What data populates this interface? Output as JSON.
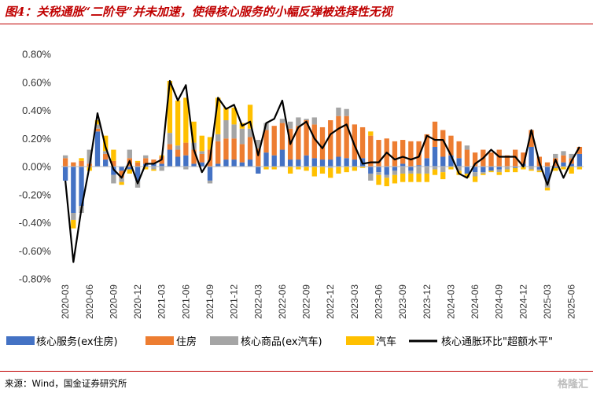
{
  "figure": {
    "title": "图4：关税通胀“二阶导”并未加速，使得核心服务的小幅反弹被选择性无视",
    "source": "来源：Wind，国金证券研究所",
    "watermark": "格隆汇"
  },
  "chart_data": {
    "type": "bar",
    "stacked": true,
    "title": "",
    "xlabel": "",
    "ylabel": "",
    "ylim": [
      -0.8,
      0.8
    ],
    "yticks": [
      "-0.80%",
      "-0.60%",
      "-0.40%",
      "-0.20%",
      "0.00%",
      "0.20%",
      "0.40%",
      "0.60%",
      "0.80%"
    ],
    "ytick_values": [
      -0.8,
      -0.6,
      -0.4,
      -0.2,
      0,
      0.2,
      0.4,
      0.6,
      0.8
    ],
    "xtick_labels": [
      "2020-03",
      "2020-06",
      "2020-09",
      "2020-12",
      "2021-03",
      "2021-06",
      "2021-09",
      "2021-12",
      "2022-03",
      "2022-06",
      "2022-09",
      "2022-12",
      "2023-03",
      "2023-06",
      "2023-09",
      "2023-12",
      "2024-03",
      "2024-06",
      "2024-09",
      "2024-12",
      "2025-03",
      "2025-06"
    ],
    "grid": false,
    "legend_position": "bottom",
    "categories": [
      "2020-03",
      "2020-04",
      "2020-05",
      "2020-06",
      "2020-07",
      "2020-08",
      "2020-09",
      "2020-10",
      "2020-11",
      "2020-12",
      "2021-01",
      "2021-02",
      "2021-03",
      "2021-04",
      "2021-05",
      "2021-06",
      "2021-07",
      "2021-08",
      "2021-09",
      "2021-10",
      "2021-11",
      "2021-12",
      "2022-01",
      "2022-02",
      "2022-03",
      "2022-04",
      "2022-05",
      "2022-06",
      "2022-07",
      "2022-08",
      "2022-09",
      "2022-10",
      "2022-11",
      "2022-12",
      "2023-01",
      "2023-02",
      "2023-03",
      "2023-04",
      "2023-05",
      "2023-06",
      "2023-07",
      "2023-08",
      "2023-09",
      "2023-10",
      "2023-11",
      "2023-12",
      "2024-01",
      "2024-02",
      "2024-03",
      "2024-04",
      "2024-05",
      "2024-06",
      "2024-07",
      "2024-08",
      "2024-09",
      "2024-10",
      "2024-11",
      "2024-12",
      "2025-01",
      "2025-02",
      "2025-03",
      "2025-04",
      "2025-05",
      "2025-06",
      "2025-07"
    ],
    "series": [
      {
        "name": "核心服务(ex住房)",
        "color": "#4472c4",
        "values": [
          -0.1,
          -0.33,
          -0.28,
          0.0,
          0.25,
          0.05,
          -0.06,
          -0.03,
          -0.02,
          -0.1,
          0.02,
          0.02,
          0.02,
          0.12,
          0.07,
          0.08,
          0.02,
          0.03,
          -0.1,
          0.02,
          0.05,
          0.05,
          0.03,
          0.05,
          -0.05,
          0.1,
          0.08,
          0.12,
          0.05,
          0.05,
          0.08,
          0.06,
          0.05,
          0.05,
          0.07,
          0.06,
          0.05,
          0.06,
          -0.05,
          -0.04,
          -0.06,
          -0.03,
          0.02,
          -0.03,
          0.01,
          0.06,
          0.14,
          0.07,
          0.08,
          0.06,
          -0.05,
          -0.04,
          -0.04,
          -0.03,
          -0.02,
          0.0,
          -0.01,
          0.02,
          0.14,
          -0.02,
          -0.1,
          -0.01,
          0.03,
          0.02,
          0.09
        ]
      },
      {
        "name": "住房",
        "color": "#ed7d31",
        "values": [
          0.06,
          0.03,
          0.04,
          0.02,
          0.02,
          0.04,
          0.04,
          -0.05,
          0.06,
          0.03,
          0.04,
          0.03,
          0.05,
          0.04,
          0.05,
          0.09,
          0.1,
          0.06,
          0.12,
          0.16,
          0.15,
          0.15,
          0.13,
          0.16,
          0.13,
          0.16,
          0.21,
          0.19,
          0.22,
          0.24,
          0.25,
          0.24,
          0.23,
          0.28,
          0.29,
          0.3,
          0.25,
          0.22,
          0.22,
          0.19,
          0.2,
          0.18,
          0.17,
          0.18,
          0.17,
          0.17,
          0.18,
          0.19,
          0.14,
          0.12,
          0.12,
          0.1,
          0.12,
          0.1,
          0.12,
          0.08,
          0.12,
          0.08,
          0.12,
          0.07,
          0.03,
          0.06,
          0.05,
          0.04,
          0.05
        ]
      },
      {
        "name": "核心商品(ex汽车)",
        "color": "#a5a5a5",
        "values": [
          0.02,
          -0.05,
          -0.05,
          0.1,
          0.03,
          0.02,
          -0.06,
          -0.03,
          0.06,
          -0.05,
          0.02,
          -0.02,
          -0.03,
          0.08,
          0.03,
          -0.02,
          0.05,
          0.02,
          -0.02,
          0.05,
          0.13,
          0.1,
          0.11,
          0.06,
          0.06,
          0.05,
          0.0,
          0.03,
          0.05,
          0.06,
          0.01,
          0.05,
          0.0,
          -0.01,
          0.06,
          0.05,
          0.0,
          0.0,
          -0.05,
          -0.02,
          -0.02,
          -0.03,
          -0.05,
          -0.02,
          -0.05,
          -0.05,
          -0.02,
          -0.04,
          0.0,
          -0.03,
          0.03,
          -0.03,
          -0.01,
          0.0,
          -0.02,
          -0.02,
          0.0,
          0.0,
          -0.02,
          -0.01,
          -0.05,
          0.03,
          0.03,
          0.03,
          0.0
        ]
      },
      {
        "name": "汽车",
        "color": "#ffc000",
        "values": [
          0.0,
          -0.06,
          0.02,
          -0.03,
          0.03,
          0.11,
          0.08,
          -0.02,
          -0.03,
          0.01,
          -0.02,
          -0.01,
          0.01,
          0.37,
          0.32,
          0.32,
          0.15,
          0.11,
          0.09,
          0.26,
          0.09,
          0.12,
          0.04,
          0.17,
          0.0,
          -0.02,
          -0.02,
          0.0,
          -0.05,
          -0.02,
          -0.03,
          -0.07,
          -0.05,
          -0.07,
          -0.05,
          -0.04,
          -0.03,
          -0.01,
          0.03,
          -0.07,
          -0.06,
          -0.06,
          -0.06,
          -0.06,
          -0.06,
          -0.06,
          -0.04,
          -0.05,
          -0.02,
          -0.03,
          -0.03,
          -0.04,
          -0.01,
          -0.01,
          -0.02,
          -0.02,
          -0.03,
          -0.02,
          -0.01,
          -0.01,
          -0.02,
          -0.02,
          -0.02,
          -0.05,
          -0.02
        ]
      }
    ],
    "line": {
      "name": "核心通胀环比\"超额水平\"",
      "color": "#000000",
      "values": [
        -0.1,
        -0.68,
        -0.3,
        0.0,
        0.38,
        0.14,
        -0.02,
        -0.08,
        0.04,
        -0.12,
        0.02,
        0.02,
        0.05,
        0.61,
        0.47,
        0.58,
        0.12,
        -0.04,
        0.05,
        0.49,
        0.41,
        0.44,
        0.29,
        0.32,
        0.08,
        0.31,
        0.34,
        0.47,
        0.16,
        0.28,
        0.32,
        0.2,
        0.13,
        0.23,
        0.27,
        0.3,
        0.15,
        0.02,
        0.03,
        0.03,
        0.1,
        0.05,
        0.07,
        0.05,
        0.07,
        0.22,
        0.19,
        0.19,
        0.08,
        -0.05,
        -0.08,
        0.02,
        0.06,
        0.12,
        0.07,
        0.07,
        0.07,
        0.0,
        0.26,
        0.03,
        -0.13,
        0.05,
        -0.08,
        0.04,
        0.14
      ]
    }
  }
}
